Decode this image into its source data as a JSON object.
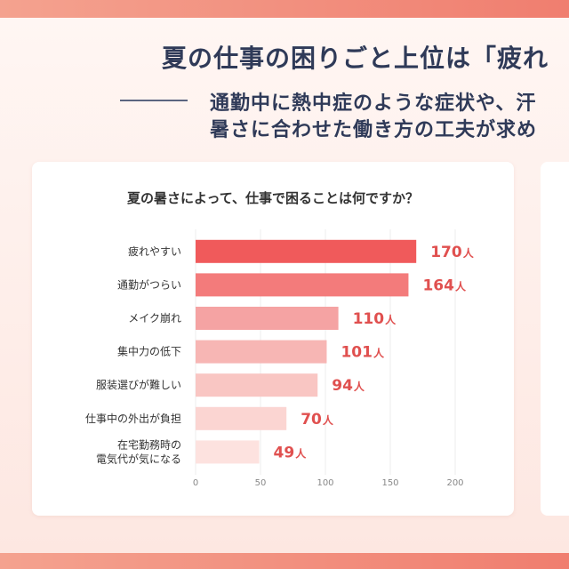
{
  "header": {
    "headline": "夏の仕事の困りごと上位は「疲れ",
    "subline1": "通勤中に熱中症のような症状や、汗",
    "subline2": "暑さに合わせた働き方の工夫が求め"
  },
  "colors": {
    "accent": "#f05a5b",
    "bar_gradient": [
      "#f05a5b",
      "#f37b7b",
      "#f5a3a3",
      "#f7b6b4",
      "#f9c6c3",
      "#fbd5d2",
      "#fde2df"
    ],
    "value_color": "#e0504f"
  },
  "chart_data": {
    "type": "bar",
    "orientation": "horizontal",
    "title": "夏の暑さによって、仕事で困ることは何ですか？",
    "categories": [
      "疲れやすい",
      "通勤がつらい",
      "メイク崩れ",
      "集中力の低下",
      "服装選びが難しい",
      "仕事中の外出が負担",
      "在宅勤務時の\n電気代が気になる"
    ],
    "values": [
      170,
      164,
      110,
      101,
      94,
      70,
      49
    ],
    "unit": "人",
    "xlim": [
      0,
      200
    ],
    "xticks": [
      0,
      50,
      100,
      150,
      200
    ],
    "grid": true
  }
}
